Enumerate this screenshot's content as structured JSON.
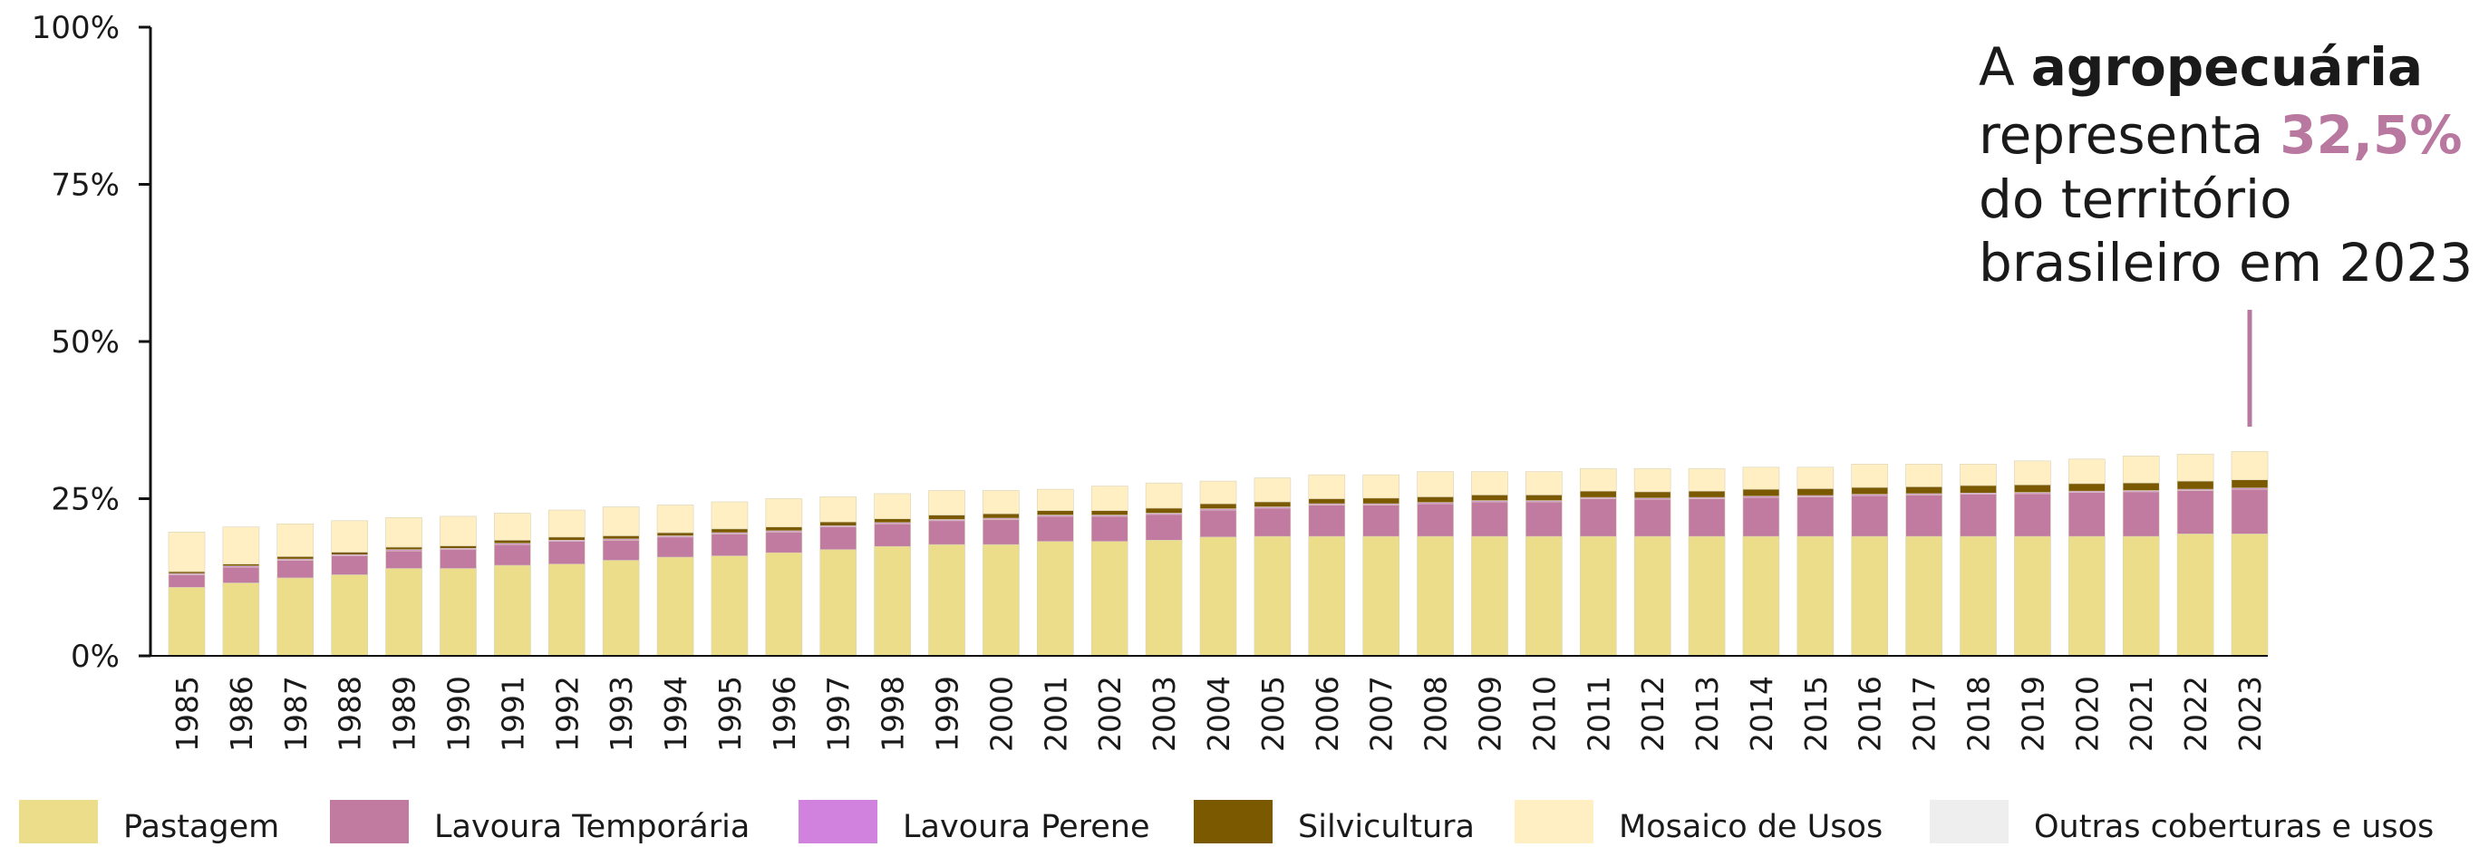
{
  "chart_data": {
    "type": "stacked_bar",
    "categories": [
      "1985",
      "1986",
      "1987",
      "1988",
      "1989",
      "1990",
      "1991",
      "1992",
      "1993",
      "1994",
      "1995",
      "1996",
      "1997",
      "1998",
      "1999",
      "2000",
      "2001",
      "2002",
      "2003",
      "2004",
      "2005",
      "2006",
      "2007",
      "2008",
      "2009",
      "2010",
      "2011",
      "2012",
      "2013",
      "2014",
      "2015",
      "2016",
      "2017",
      "2018",
      "2019",
      "2020",
      "2021",
      "2022",
      "2023"
    ],
    "series": [
      {
        "name": "Pastagem",
        "color": "#ecdd8b",
        "values": [
          10.9,
          11.6,
          12.4,
          12.9,
          13.9,
          13.9,
          14.4,
          14.6,
          15.2,
          15.7,
          15.9,
          16.4,
          16.9,
          17.4,
          17.7,
          17.7,
          18.2,
          18.2,
          18.4,
          18.9,
          19.0,
          19.0,
          19.0,
          19.0,
          19.0,
          19.0,
          19.0,
          19.0,
          19.0,
          19.0,
          19.0,
          19.0,
          19.0,
          19.0,
          19.0,
          19.0,
          19.0,
          19.4,
          19.4
        ]
      },
      {
        "name": "Lavoura Temporária",
        "color": "#c27ba0",
        "values": [
          2.0,
          2.5,
          2.8,
          3.0,
          2.8,
          3.0,
          3.3,
          3.6,
          3.2,
          3.2,
          3.5,
          3.3,
          3.6,
          3.6,
          3.8,
          4.0,
          4.0,
          4.0,
          4.1,
          4.3,
          4.5,
          5.0,
          5.0,
          5.2,
          5.5,
          5.5,
          6.0,
          5.9,
          6.0,
          6.2,
          6.3,
          6.5,
          6.6,
          6.7,
          6.8,
          7.0,
          7.1,
          6.9,
          7.1
        ]
      },
      {
        "name": "Lavoura Perene",
        "color": "#d082de",
        "values": [
          0.2,
          0.2,
          0.2,
          0.2,
          0.2,
          0.2,
          0.2,
          0.2,
          0.2,
          0.2,
          0.2,
          0.2,
          0.2,
          0.2,
          0.2,
          0.2,
          0.2,
          0.2,
          0.2,
          0.2,
          0.2,
          0.2,
          0.2,
          0.2,
          0.2,
          0.2,
          0.2,
          0.2,
          0.2,
          0.2,
          0.2,
          0.2,
          0.2,
          0.2,
          0.2,
          0.2,
          0.2,
          0.2,
          0.2
        ]
      },
      {
        "name": "Silvicultura",
        "color": "#7a5900",
        "values": [
          0.3,
          0.3,
          0.4,
          0.4,
          0.4,
          0.4,
          0.5,
          0.5,
          0.5,
          0.5,
          0.6,
          0.6,
          0.6,
          0.6,
          0.7,
          0.7,
          0.7,
          0.7,
          0.8,
          0.8,
          0.8,
          0.8,
          0.9,
          0.9,
          0.9,
          0.9,
          1.0,
          1.0,
          1.0,
          1.1,
          1.1,
          1.1,
          1.1,
          1.2,
          1.2,
          1.2,
          1.2,
          1.3,
          1.3
        ]
      },
      {
        "name": "Mosaico de Usos",
        "color": "#ffefc3",
        "values": [
          6.3,
          5.9,
          5.2,
          5.0,
          4.7,
          4.7,
          4.3,
          4.3,
          4.6,
          4.4,
          4.3,
          4.5,
          4.0,
          4.0,
          3.9,
          3.7,
          3.4,
          3.9,
          4.0,
          3.6,
          3.8,
          3.8,
          3.7,
          4.0,
          3.7,
          3.7,
          3.6,
          3.7,
          3.6,
          3.5,
          3.4,
          3.7,
          3.6,
          3.4,
          3.8,
          3.9,
          4.3,
          4.3,
          4.5
        ]
      },
      {
        "name": "Outras coberturas e usos",
        "color": "#eeeeee"
      }
    ],
    "ylim": [
      0,
      100
    ],
    "yticks": [
      {
        "value": 0,
        "label": "0%"
      },
      {
        "value": 25,
        "label": "25%"
      },
      {
        "value": 50,
        "label": "50%"
      },
      {
        "value": 75,
        "label": "75%"
      },
      {
        "value": 100,
        "label": "100%"
      }
    ],
    "annotation": {
      "lines": [
        [
          "A",
          "agropecuária"
        ],
        [
          "representa",
          "32,5%"
        ],
        [
          "do território"
        ],
        [
          "brasileiro em 2023"
        ]
      ],
      "color": "#b9789f"
    },
    "legend": "bottom"
  }
}
